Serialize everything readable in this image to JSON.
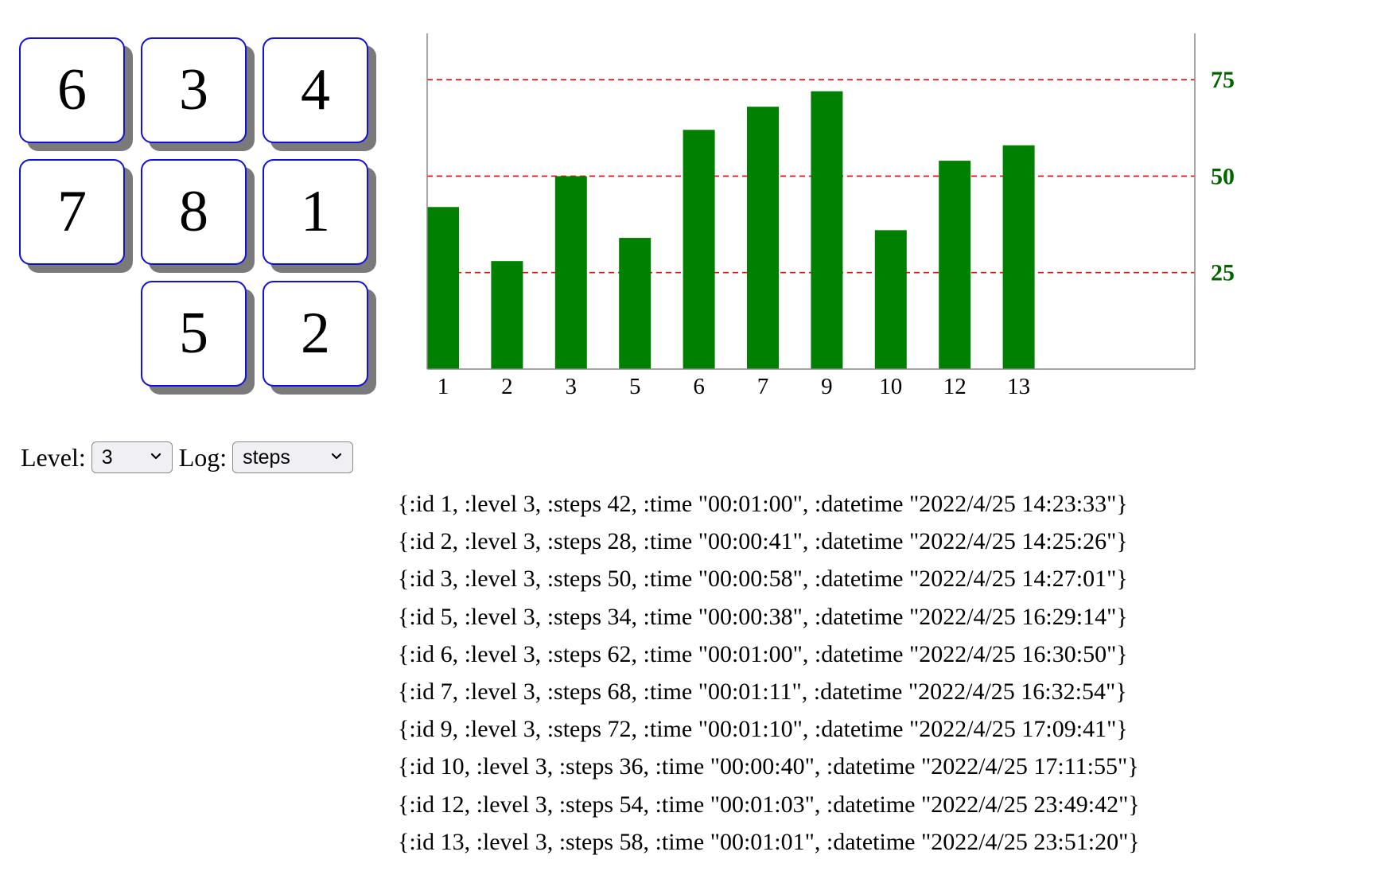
{
  "puzzle": {
    "tiles": [
      {
        "label": "6",
        "row": 0,
        "col": 0
      },
      {
        "label": "3",
        "row": 0,
        "col": 1
      },
      {
        "label": "4",
        "row": 0,
        "col": 2
      },
      {
        "label": "7",
        "row": 1,
        "col": 0
      },
      {
        "label": "8",
        "row": 1,
        "col": 1
      },
      {
        "label": "1",
        "row": 1,
        "col": 2
      },
      {
        "label": "5",
        "row": 2,
        "col": 1
      },
      {
        "label": "2",
        "row": 2,
        "col": 2
      }
    ]
  },
  "controls": {
    "level_label": "Level:",
    "level_value": "3",
    "log_label": "Log:",
    "log_value": "steps"
  },
  "chart_data": {
    "type": "bar",
    "categories": [
      "1",
      "2",
      "3",
      "5",
      "6",
      "7",
      "9",
      "10",
      "12",
      "13"
    ],
    "values": [
      42,
      28,
      50,
      34,
      62,
      68,
      72,
      36,
      54,
      58
    ],
    "ylim": [
      0,
      87
    ],
    "yticks": [
      25,
      50,
      75
    ],
    "y_axis_side": "right",
    "grid": "dashed horizontal lines at y ticks",
    "bar_color": "#008000",
    "grid_color": "#ff0000",
    "tick_label_color": "#006400"
  },
  "log": [
    "{:id 1, :level 3, :steps 42, :time \"00:01:00\", :datetime \"2022/4/25 14:23:33\"}",
    "{:id 2, :level 3, :steps 28, :time \"00:00:41\", :datetime \"2022/4/25 14:25:26\"}",
    "{:id 3, :level 3, :steps 50, :time \"00:00:58\", :datetime \"2022/4/25 14:27:01\"}",
    "{:id 5, :level 3, :steps 34, :time \"00:00:38\", :datetime \"2022/4/25 16:29:14\"}",
    "{:id 6, :level 3, :steps 62, :time \"00:01:00\", :datetime \"2022/4/25 16:30:50\"}",
    "{:id 7, :level 3, :steps 68, :time \"00:01:11\", :datetime \"2022/4/25 16:32:54\"}",
    "{:id 9, :level 3, :steps 72, :time \"00:01:10\", :datetime \"2022/4/25 17:09:41\"}",
    "{:id 10, :level 3, :steps 36, :time \"00:00:40\", :datetime \"2022/4/25 17:11:55\"}",
    "{:id 12, :level 3, :steps 54, :time \"00:01:03\", :datetime \"2022/4/25 23:49:42\"}",
    "{:id 13, :level 3, :steps 58, :time \"00:01:01\", :datetime \"2022/4/25 23:51:20\"}"
  ]
}
